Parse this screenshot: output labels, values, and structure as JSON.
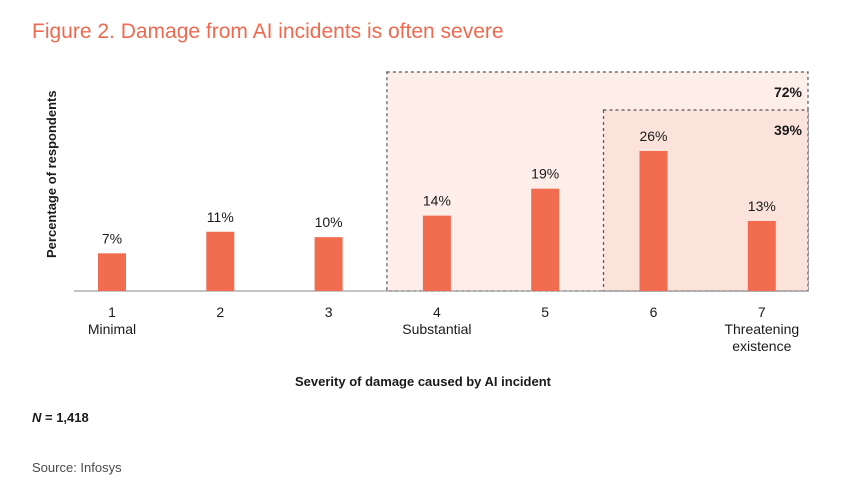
{
  "title": "Figure 2. Damage from AI incidents is often severe",
  "note": {
    "symbol": "N",
    "text": " = 1,418"
  },
  "source": "Source: Infosys",
  "colors": {
    "title": "#ef6a50",
    "bar": "#f26c4f",
    "highlight_fill": "#fdeeea",
    "highlight_fill_inner": "#fbe3dc"
  },
  "chart_data": {
    "type": "bar",
    "title": "Figure 2. Damage from AI incidents is often severe",
    "xlabel": "Severity of damage caused by AI incident",
    "ylabel": "Percentage of respondents",
    "ylim": [
      0,
      30
    ],
    "grid": false,
    "categories": [
      "1",
      "2",
      "3",
      "4",
      "5",
      "6",
      "7"
    ],
    "category_sublabels": [
      "Minimal",
      "",
      "",
      "Substantial",
      "",
      "",
      "Threatening existence"
    ],
    "values": [
      7,
      11,
      10,
      14,
      19,
      26,
      13
    ],
    "value_labels": [
      "7%",
      "11%",
      "10%",
      "14%",
      "19%",
      "26%",
      "13%"
    ],
    "annotations": [
      {
        "label": "72%",
        "from_category": "4",
        "to_category": "7"
      },
      {
        "label": "39%",
        "from_category": "6",
        "to_category": "7"
      }
    ]
  }
}
